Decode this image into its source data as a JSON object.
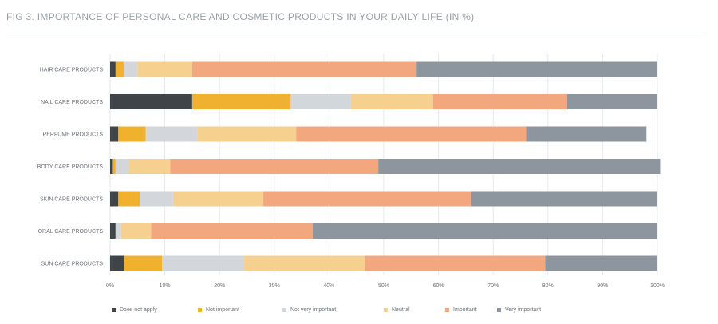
{
  "chart_data": {
    "type": "bar",
    "orientation": "horizontal",
    "stacked": true,
    "title": "FIG 3. IMPORTANCE OF PERSONAL CARE AND COSMETIC PRODUCTS IN YOUR DAILY LIFE (IN %)",
    "categories": [
      "HAIR CARE PRODUCTS",
      "NAIL CARE PRODUCTS",
      "PERFUME PRODUCTS",
      "BODY CARE PRODUCTS",
      "SKIN CARE PRODUCTS",
      "ORAL CARE PRODUCTS",
      "SUN CARE PRODUCTS"
    ],
    "series": [
      {
        "name": "Does not apply",
        "color": "#3f4449",
        "values": [
          1,
          15,
          1.5,
          0.5,
          1.5,
          1,
          2.5
        ]
      },
      {
        "name": "Not important",
        "color": "#efb12e",
        "values": [
          1.5,
          18,
          5,
          0.5,
          4,
          0,
          7
        ]
      },
      {
        "name": "Not very important",
        "color": "#d3d6da",
        "values": [
          2.5,
          11,
          9.5,
          2.5,
          6,
          1,
          15
        ]
      },
      {
        "name": "Neutral",
        "color": "#f6d08f",
        "values": [
          10,
          15,
          18,
          7.5,
          16.5,
          5.5,
          22
        ]
      },
      {
        "name": "Important",
        "color": "#f2a77f",
        "values": [
          41,
          24.5,
          42,
          38,
          38,
          29.5,
          33
        ]
      },
      {
        "name": "Very important",
        "color": "#8d969e",
        "values": [
          44,
          16.5,
          22,
          51.5,
          34,
          63,
          20.5
        ]
      }
    ],
    "xticks": [
      "0%",
      "10%",
      "20%",
      "30%",
      "40%",
      "50%",
      "60%",
      "70%",
      "80%",
      "90%",
      "100%"
    ],
    "xlim": [
      0,
      100
    ],
    "grid": true,
    "legend_position": "bottom"
  }
}
